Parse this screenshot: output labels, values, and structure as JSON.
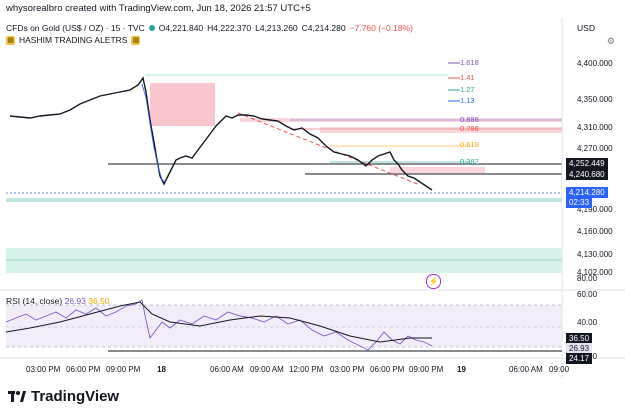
{
  "header": {
    "creator": "whysorealbro created with TradingView.com, Jun 18, 2026 21:57 UTC+5",
    "symbol": "CFDs on Gold (US$ / OZ) · 15 · TVC",
    "open": "O4,221.840",
    "high": "H4,222.370",
    "low": "L4,213.260",
    "close": "C4,214.280",
    "change": "−7.760 (−0.18%)",
    "indicator": "HASHIM TRADING ALETRS",
    "currency": "USD"
  },
  "price_axis": {
    "ticks": [
      "4,400.000",
      "4,350.000",
      "4,310.000",
      "4,270.000",
      "4,190.000",
      "4,160.000",
      "4,130.000",
      "4,102.000"
    ],
    "tags": [
      {
        "label": "4,252.449",
        "color": "#131722"
      },
      {
        "label": "4,240.680",
        "color": "#131722"
      },
      {
        "label": "4,214.280",
        "color": "#2962ff"
      },
      {
        "label": "02:33",
        "color": "#2962ff"
      }
    ]
  },
  "fib_levels": [
    {
      "label": "1.618",
      "color": "#7e57c2"
    },
    {
      "label": "1.41",
      "color": "#ef5350"
    },
    {
      "label": "1.27",
      "color": "#26a69a"
    },
    {
      "label": "1.13",
      "color": "#2962ff"
    },
    {
      "label": "0.886",
      "color": "#7e57c2"
    },
    {
      "label": "0.786",
      "color": "#ef5350"
    },
    {
      "label": "0.618",
      "color": "#f7a600"
    },
    {
      "label": "0.382",
      "color": "#26a69a"
    }
  ],
  "rsi": {
    "name": "RSI (14, close)",
    "value1": "26.93",
    "value2": "36.50",
    "ticks": [
      "80.00",
      "60.00",
      "40.00",
      "20.00"
    ],
    "tags": [
      {
        "label": "36.50",
        "color": "#131722"
      },
      {
        "label": "26.93",
        "color": "#e6e0f5"
      },
      {
        "label": "24.17",
        "color": "#131722"
      }
    ]
  },
  "time_axis": [
    "03:00 PM",
    "06:00 PM",
    "09:00 PM",
    "18",
    "06:00 AM",
    "09:00 AM",
    "12:00 PM",
    "03:00 PM",
    "06:00 PM",
    "09:00 PM",
    "19",
    "06:00 AM",
    "09:00"
  ],
  "brand": "TradingView",
  "colors": {
    "up": "#26a69a",
    "down": "#2962ff",
    "candle": "#131722"
  }
}
